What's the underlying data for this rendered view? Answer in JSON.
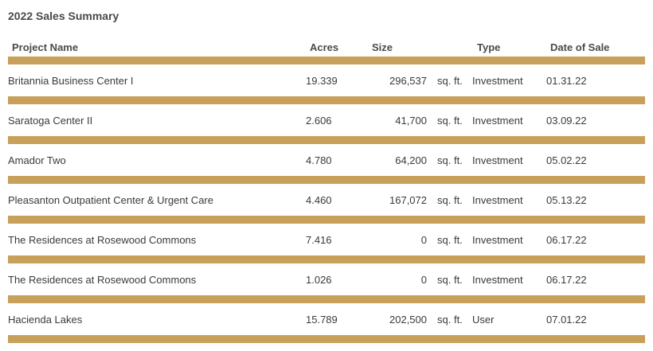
{
  "title": "2022 Sales Summary",
  "headers": {
    "project": "Project Name",
    "acres": "Acres",
    "size": "Size",
    "type": "Type",
    "date": "Date of Sale"
  },
  "accent_color": "#c9a05a",
  "rows": [
    {
      "name": "Britannia Business Center I",
      "acres": "19.339",
      "size": "296,537",
      "unit": "sq. ft.",
      "type": "Investment",
      "date": "01.31.22"
    },
    {
      "name": "Saratoga Center II",
      "acres": "2.606",
      "size": "41,700",
      "unit": "sq. ft.",
      "type": "Investment",
      "date": "03.09.22"
    },
    {
      "name": "Amador Two",
      "acres": "4.780",
      "size": "64,200",
      "unit": "sq. ft.",
      "type": "Investment",
      "date": "05.02.22"
    },
    {
      "name": "Pleasanton Outpatient Center & Urgent Care",
      "acres": "4.460",
      "size": "167,072",
      "unit": "sq. ft.",
      "type": "Investment",
      "date": "05.13.22"
    },
    {
      "name": "The Residences at Rosewood Commons",
      "acres": "7.416",
      "size": "0",
      "unit": "sq. ft.",
      "type": "Investment",
      "date": "06.17.22"
    },
    {
      "name": "The Residences at Rosewood Commons",
      "acres": "1.026",
      "size": "0",
      "unit": "sq. ft.",
      "type": "Investment",
      "date": "06.17.22"
    },
    {
      "name": "Hacienda Lakes",
      "acres": "15.789",
      "size": "202,500",
      "unit": "sq. ft.",
      "type": "User",
      "date": "07.01.22"
    }
  ]
}
